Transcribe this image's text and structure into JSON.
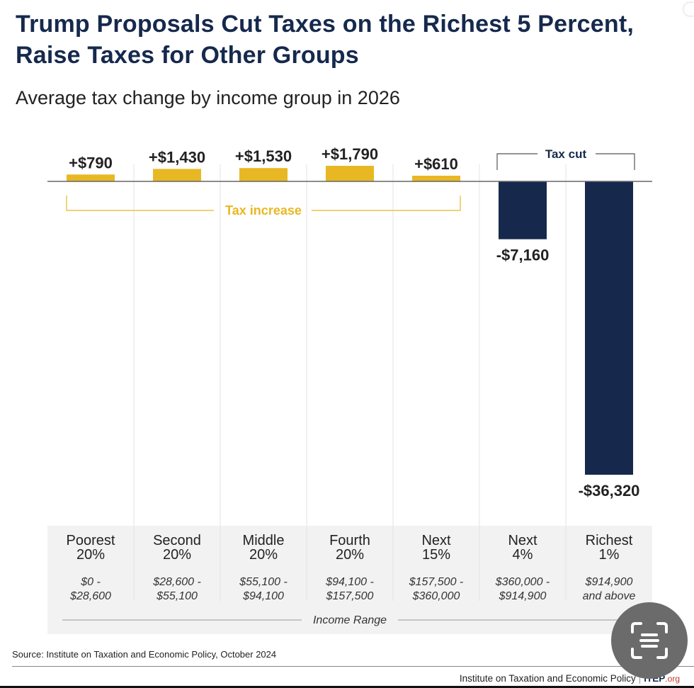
{
  "header": {
    "title": "Trump Proposals Cut Taxes on the Richest 5 Percent, Raise Taxes for Other Groups",
    "subtitle": "Average tax change by income group in 2026"
  },
  "chart_data": {
    "type": "bar",
    "title": "Trump Proposals Cut Taxes on the Richest 5 Percent, Raise Taxes for Other Groups",
    "subtitle": "Average tax change by income group in 2026",
    "xlabel": "Income Range",
    "ylabel": "",
    "categories": [
      "Poorest 20%",
      "Second 20%",
      "Middle 20%",
      "Fourth 20%",
      "Next 15%",
      "Next 4%",
      "Richest 1%"
    ],
    "group_names": [
      [
        "Poorest",
        "20%"
      ],
      [
        "Second",
        "20%"
      ],
      [
        "Middle",
        "20%"
      ],
      [
        "Fourth",
        "20%"
      ],
      [
        "Next",
        "15%"
      ],
      [
        "Next",
        "4%"
      ],
      [
        "Richest",
        "1%"
      ]
    ],
    "income_ranges": [
      [
        "$0 -",
        "$28,600"
      ],
      [
        "$28,600 -",
        "$55,100"
      ],
      [
        "$55,100 -",
        "$94,100"
      ],
      [
        "$94,100 -",
        "$157,500"
      ],
      [
        "$157,500 -",
        "$360,000"
      ],
      [
        "$360,000 -",
        "$914,900"
      ],
      [
        "$914,900",
        "and above"
      ]
    ],
    "values": [
      790,
      1430,
      1530,
      1790,
      610,
      -7160,
      -36320
    ],
    "value_labels": [
      "+$790",
      "+$1,430",
      "+$1,530",
      "+$1,790",
      "+$610",
      "-$7,160",
      "-$36,320"
    ],
    "ylim": [
      -36320,
      1790
    ],
    "grid": false,
    "annotations": [
      {
        "text": "Tax increase",
        "spans": [
          "Poorest 20%",
          "Next 15%"
        ]
      },
      {
        "text": "Tax cut",
        "spans": [
          "Next 4%",
          "Richest 1%"
        ]
      }
    ],
    "colors": {
      "increase": "#e8b824",
      "cut": "#16294d",
      "increase_label": "#e8b824",
      "cut_label": "#16294d"
    }
  },
  "footer": {
    "source": "Source: Institute on Taxation and Economic Policy, October 2024",
    "org_name": "Institute on Taxation and Economic Policy",
    "brand": "ITEP",
    "brand_suffix": ".org"
  },
  "overlay": {
    "scan_button_icon": "text-scan-icon"
  }
}
